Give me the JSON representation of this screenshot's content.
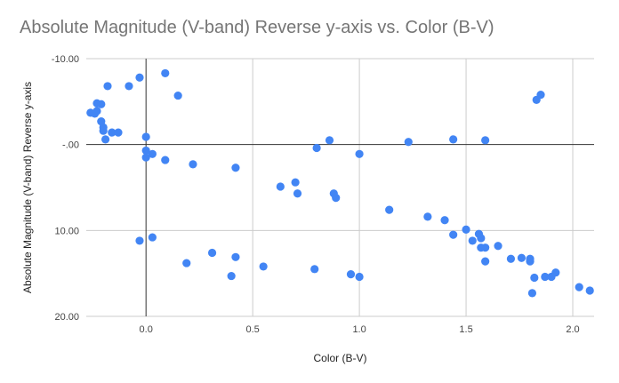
{
  "chart_data": {
    "type": "scatter",
    "title": "Absolute Magnitude (V-band) Reverse y-axis vs. Color (B-V)",
    "xlabel": "Color (B-V)",
    "ylabel": "Absolute Magnitude (V-band) Reverse y-axis",
    "xlim": [
      -0.28,
      2.1
    ],
    "ylim": [
      -10,
      20
    ],
    "y_reversed": true,
    "x_ticks": [
      {
        "v": 0,
        "label": "0.0"
      },
      {
        "v": 0.5,
        "label": "0.5"
      },
      {
        "v": 1,
        "label": "1.0"
      },
      {
        "v": 1.5,
        "label": "1.5"
      },
      {
        "v": 2,
        "label": "2.0"
      }
    ],
    "y_ticks": [
      {
        "v": -10,
        "label": "-10.00"
      },
      {
        "v": 0,
        "label": "-.00"
      },
      {
        "v": 10,
        "label": "10.00"
      },
      {
        "v": 20,
        "label": "20.00"
      }
    ],
    "grid": true,
    "legend": "none",
    "marker_color": "#4285f4",
    "series": [
      {
        "points": [
          {
            "x": -0.26,
            "y": -3.7
          },
          {
            "x": -0.24,
            "y": -3.6
          },
          {
            "x": -0.23,
            "y": -3.9
          },
          {
            "x": -0.23,
            "y": -4.8
          },
          {
            "x": -0.21,
            "y": -4.7
          },
          {
            "x": -0.21,
            "y": -2.7
          },
          {
            "x": -0.2,
            "y": -2.0
          },
          {
            "x": -0.2,
            "y": -1.6
          },
          {
            "x": -0.19,
            "y": -0.6
          },
          {
            "x": -0.18,
            "y": -6.8
          },
          {
            "x": -0.16,
            "y": -1.4
          },
          {
            "x": -0.13,
            "y": -1.4
          },
          {
            "x": -0.08,
            "y": -6.8
          },
          {
            "x": -0.03,
            "y": -7.8
          },
          {
            "x": 0.0,
            "y": -0.9
          },
          {
            "x": 0.0,
            "y": 0.7
          },
          {
            "x": 0.0,
            "y": 1.5
          },
          {
            "x": 0.03,
            "y": 1.1
          },
          {
            "x": 0.09,
            "y": -8.3
          },
          {
            "x": 0.09,
            "y": 1.8
          },
          {
            "x": 0.15,
            "y": -5.7
          },
          {
            "x": 0.22,
            "y": 2.3
          },
          {
            "x": 0.42,
            "y": 2.7
          },
          {
            "x": 0.63,
            "y": 4.9
          },
          {
            "x": 0.7,
            "y": 4.4
          },
          {
            "x": 0.71,
            "y": 5.7
          },
          {
            "x": 0.8,
            "y": 0.4
          },
          {
            "x": 0.86,
            "y": -0.5
          },
          {
            "x": 0.88,
            "y": 5.7
          },
          {
            "x": 0.89,
            "y": 6.2
          },
          {
            "x": 1.0,
            "y": 1.1
          },
          {
            "x": 1.14,
            "y": 7.6
          },
          {
            "x": 1.23,
            "y": -0.3
          },
          {
            "x": 1.32,
            "y": 8.4
          },
          {
            "x": 1.4,
            "y": 8.8
          },
          {
            "x": 1.44,
            "y": -0.6
          },
          {
            "x": 1.44,
            "y": 10.5
          },
          {
            "x": 1.5,
            "y": 9.9
          },
          {
            "x": 1.53,
            "y": 11.2
          },
          {
            "x": 1.56,
            "y": 10.4
          },
          {
            "x": 1.57,
            "y": 10.9
          },
          {
            "x": 1.57,
            "y": 12.0
          },
          {
            "x": 1.59,
            "y": -0.5
          },
          {
            "x": 1.59,
            "y": 12.0
          },
          {
            "x": 1.59,
            "y": 13.6
          },
          {
            "x": 1.65,
            "y": 11.8
          },
          {
            "x": 1.71,
            "y": 13.3
          },
          {
            "x": 1.76,
            "y": 13.2
          },
          {
            "x": 1.8,
            "y": 13.3
          },
          {
            "x": 1.8,
            "y": 13.6
          },
          {
            "x": 1.81,
            "y": 17.3
          },
          {
            "x": 1.82,
            "y": 15.5
          },
          {
            "x": 1.83,
            "y": -5.2
          },
          {
            "x": 1.85,
            "y": -5.8
          },
          {
            "x": 1.87,
            "y": 15.4
          },
          {
            "x": 1.9,
            "y": 15.4
          },
          {
            "x": 1.92,
            "y": 14.9
          },
          {
            "x": 2.03,
            "y": 16.6
          },
          {
            "x": 2.08,
            "y": 17.0
          },
          {
            "x": -0.03,
            "y": 11.2
          },
          {
            "x": 0.03,
            "y": 10.8
          },
          {
            "x": 0.19,
            "y": 13.8
          },
          {
            "x": 0.31,
            "y": 12.6
          },
          {
            "x": 0.4,
            "y": 15.3
          },
          {
            "x": 0.42,
            "y": 13.1
          },
          {
            "x": 0.55,
            "y": 14.2
          },
          {
            "x": 0.79,
            "y": 14.5
          },
          {
            "x": 0.96,
            "y": 15.1
          },
          {
            "x": 1.0,
            "y": 15.4
          }
        ]
      }
    ]
  }
}
